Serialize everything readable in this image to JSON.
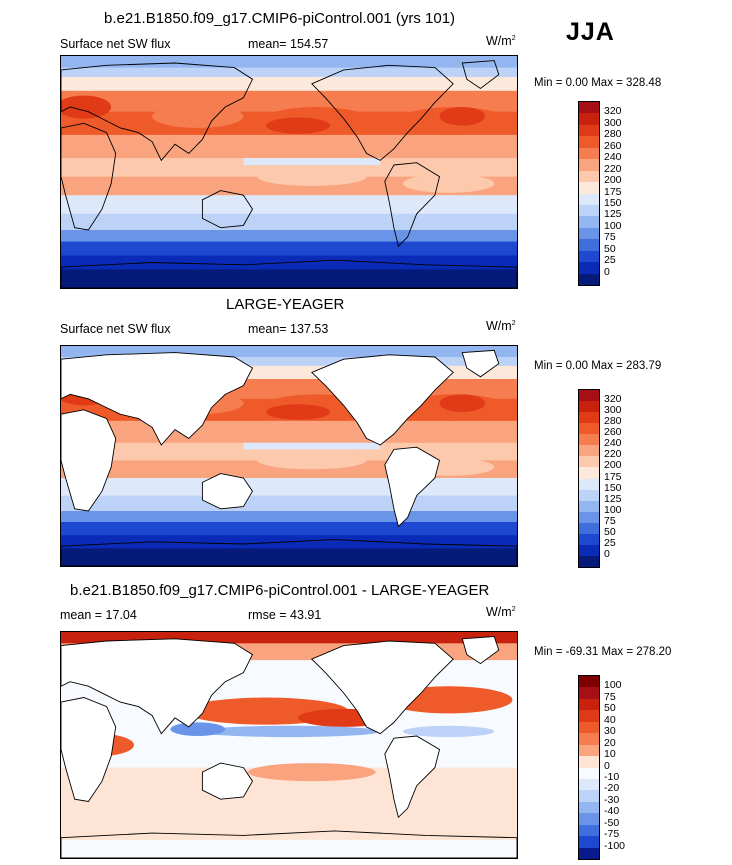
{
  "season_label": "JJA",
  "panels": [
    {
      "title": "b.e21.B1850.f09_g17.CMIP6-piControl.001 (yrs 101)",
      "left_label": "Surface net SW flux",
      "center_label": "mean= 154.57",
      "units_base": "W/m",
      "units_exp": "2",
      "min_max": "Min =   0.00 Max = 328.48",
      "land_masked": false
    },
    {
      "title": "LARGE-YEAGER",
      "left_label": "Surface net SW flux",
      "center_label": "mean= 137.53",
      "units_base": "W/m",
      "units_exp": "2",
      "min_max": "Min =   0.00 Max = 283.79",
      "land_masked": true
    },
    {
      "title": "b.e21.B1850.f09_g17.CMIP6-piControl.001 - LARGE-YEAGER",
      "left_label": "mean =  17.04",
      "center_label": "rmse =  43.91",
      "units_base": "W/m",
      "units_exp": "2",
      "min_max": "Min = -69.31 Max = 278.20",
      "land_masked": true
    }
  ],
  "chart_data": [
    {
      "type": "heatmap",
      "title": "b.e21.B1850.f09_g17.CMIP6-piControl.001 (yrs 101)",
      "variable": "Surface net SW flux",
      "units": "W/m2",
      "mean": 154.57,
      "min": 0.0,
      "max": 328.48,
      "colorbar_levels": [
        "320",
        "300",
        "280",
        "260",
        "240",
        "220",
        "200",
        "175",
        "150",
        "125",
        "100",
        "75",
        "50",
        "25",
        "0"
      ],
      "colorbar_colors": [
        "#a50f15",
        "#c8210d",
        "#e03b16",
        "#ef5a2a",
        "#f57d4f",
        "#f9a47e",
        "#fcc9ad",
        "#fde9dc",
        "#dde9fb",
        "#bcd2f7",
        "#93b5f0",
        "#6a94e8",
        "#3f6edd",
        "#1d48cf",
        "#0a2bb8",
        "#061a7a"
      ]
    },
    {
      "type": "heatmap",
      "title": "LARGE-YEAGER",
      "variable": "Surface net SW flux",
      "units": "W/m2",
      "mean": 137.53,
      "min": 0.0,
      "max": 283.79,
      "colorbar_levels": [
        "320",
        "300",
        "280",
        "260",
        "240",
        "220",
        "200",
        "175",
        "150",
        "125",
        "100",
        "75",
        "50",
        "25",
        "0"
      ],
      "colorbar_colors": [
        "#a50f15",
        "#c8210d",
        "#e03b16",
        "#ef5a2a",
        "#f57d4f",
        "#f9a47e",
        "#fcc9ad",
        "#fde9dc",
        "#dde9fb",
        "#bcd2f7",
        "#93b5f0",
        "#6a94e8",
        "#3f6edd",
        "#1d48cf",
        "#0a2bb8",
        "#061a7a"
      ]
    },
    {
      "type": "heatmap",
      "title": "b.e21.B1850.f09_g17.CMIP6-piControl.001 - LARGE-YEAGER",
      "units": "W/m2",
      "mean": 17.04,
      "rmse": 43.91,
      "min": -69.31,
      "max": 278.2,
      "colorbar_levels": [
        "100",
        "75",
        "50",
        "40",
        "30",
        "20",
        "10",
        "0",
        "-10",
        "-20",
        "-30",
        "-40",
        "-50",
        "-75",
        "-100"
      ],
      "colorbar_colors": [
        "#7f0000",
        "#a50f15",
        "#c8210d",
        "#e03b16",
        "#ef5a2a",
        "#f57d4f",
        "#f9a47e",
        "#fde4d4",
        "#f7fbff",
        "#dde9fb",
        "#bcd2f7",
        "#93b5f0",
        "#6a94e8",
        "#3f6edd",
        "#1d48cf",
        "#0a1a8c"
      ]
    }
  ]
}
